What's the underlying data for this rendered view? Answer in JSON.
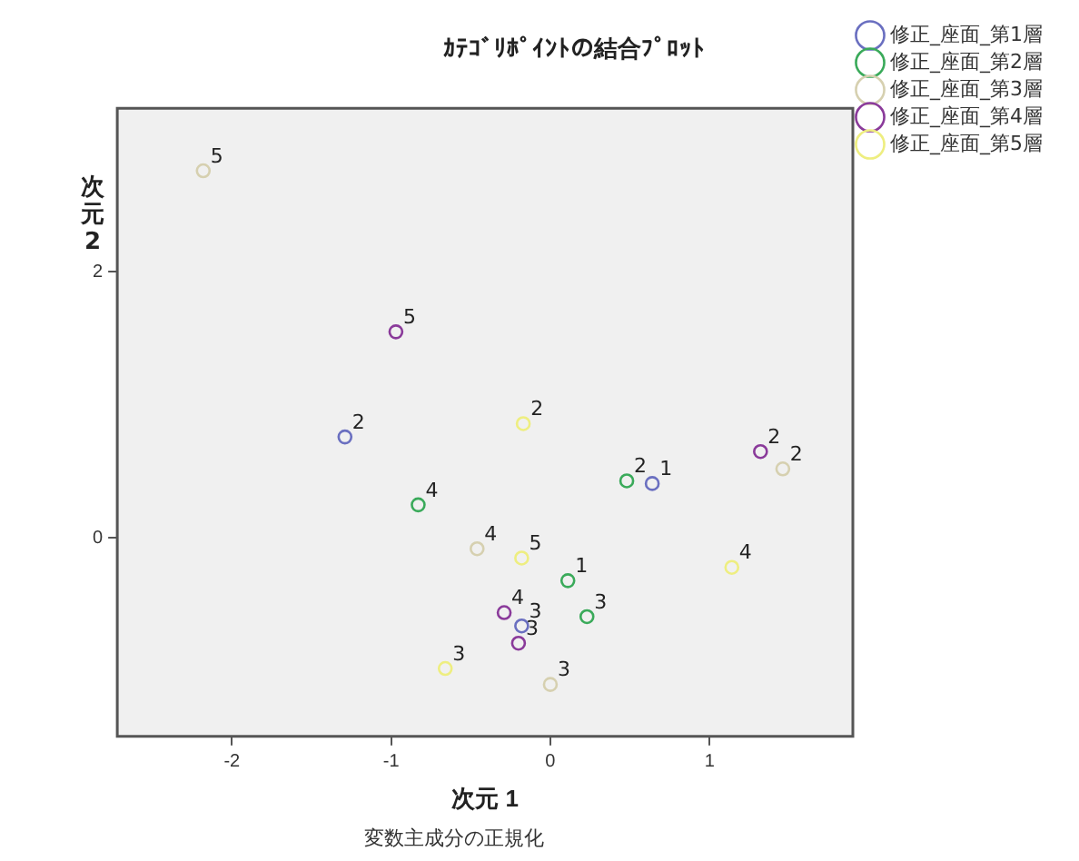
{
  "chart_data": {
    "type": "scatter",
    "title": "ｶﾃｺﾞﾘﾎﾟｲﾝﾄの結合ﾌﾟﾛｯﾄ",
    "xlabel": "次元 1",
    "ylabel": "次元 2",
    "annotations": [
      "変数主成分の正規化",
      {
        "text": "1",
        "x": 0.64,
        "y": 0.41
      },
      {
        "text": "2",
        "x": -1.29,
        "y": 0.76
      },
      {
        "text": "3",
        "x": -0.18,
        "y": -0.66
      },
      {
        "text": "1",
        "x": 0.11,
        "y": -0.32
      },
      {
        "text": "2",
        "x": 0.48,
        "y": 0.43
      },
      {
        "text": "3",
        "x": 0.23,
        "y": -0.59
      },
      {
        "text": "4",
        "x": -0.83,
        "y": 0.25
      },
      {
        "text": "2",
        "x": 1.46,
        "y": 0.52
      },
      {
        "text": "3",
        "x": 0.0,
        "y": -1.1
      },
      {
        "text": "4",
        "x": -0.46,
        "y": -0.08
      },
      {
        "text": "5",
        "x": -2.18,
        "y": 2.76
      },
      {
        "text": "2",
        "x": 1.32,
        "y": 0.65
      },
      {
        "text": "3",
        "x": -0.2,
        "y": -0.79
      },
      {
        "text": "4",
        "x": -0.29,
        "y": -0.56
      },
      {
        "text": "5",
        "x": -0.97,
        "y": 1.55
      },
      {
        "text": "2",
        "x": -0.17,
        "y": 0.86
      },
      {
        "text": "3",
        "x": -0.66,
        "y": -0.98
      },
      {
        "text": "4",
        "x": 1.14,
        "y": -0.22
      },
      {
        "text": "5",
        "x": -0.18,
        "y": -0.15
      }
    ],
    "xlim": [
      -2.72,
      1.9
    ],
    "xticks": [
      -2,
      -1,
      0,
      1
    ],
    "ylim": [
      -1.49,
      3.23
    ],
    "yticks": [
      0,
      2
    ],
    "legend": "top right",
    "marker": "circle",
    "series": [
      {
        "name": "修正_座面_第1層",
        "color": "#6a6fc0",
        "x": [
          0.64,
          -1.29,
          -0.18
        ],
        "values": [
          0.41,
          0.76,
          -0.66
        ]
      },
      {
        "name": "修正_座面_第2層",
        "color": "#3aaa5a",
        "x": [
          0.11,
          0.48,
          0.23,
          -0.83
        ],
        "values": [
          -0.32,
          0.43,
          -0.59,
          0.25
        ]
      },
      {
        "name": "修正_座面_第3層",
        "color": "#d6d0b0",
        "x": [
          1.46,
          0.0,
          -0.46,
          -2.18
        ],
        "values": [
          0.52,
          -1.1,
          -0.08,
          2.76
        ]
      },
      {
        "name": "修正_座面_第4層",
        "color": "#8a3a9a",
        "x": [
          1.32,
          -0.2,
          -0.29,
          -0.97
        ],
        "values": [
          0.65,
          -0.79,
          -0.56,
          1.55
        ]
      },
      {
        "name": "修正_座面_第5層",
        "color": "#eeee80",
        "x": [
          -0.17,
          -0.66,
          1.14,
          -0.18
        ],
        "values": [
          0.86,
          -0.98,
          -0.22,
          -0.15
        ]
      }
    ]
  }
}
